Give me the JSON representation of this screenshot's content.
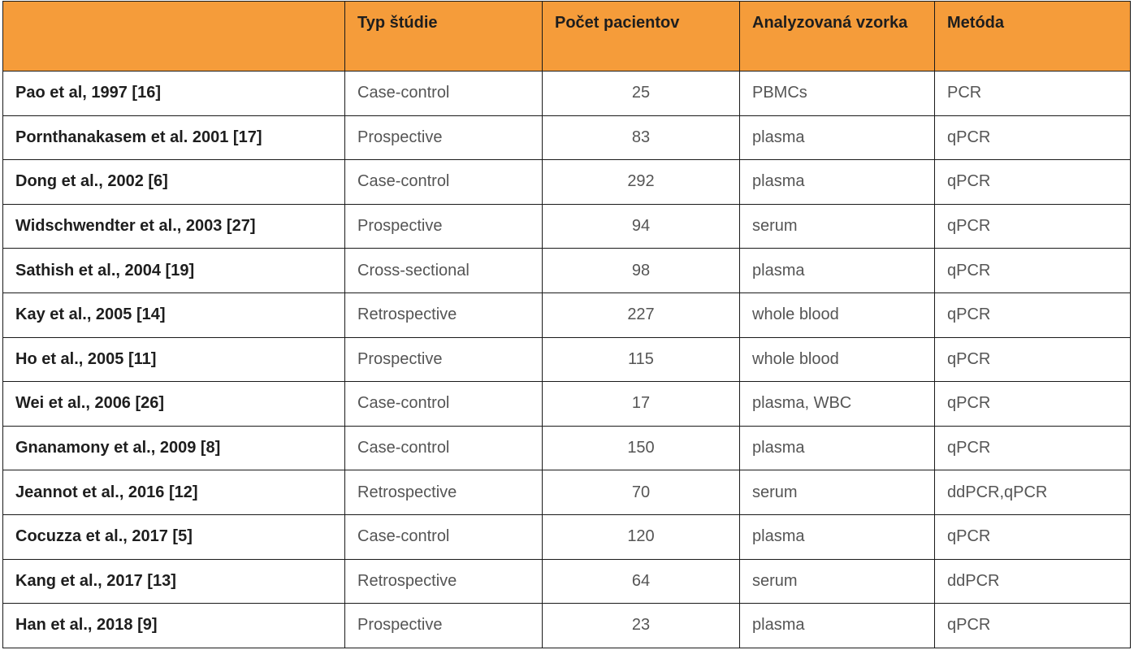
{
  "table": {
    "headers": [
      "",
      "Typ štúdie",
      "Počet pacientov",
      "Analyzovaná vzorka",
      "Metóda"
    ],
    "rows": [
      {
        "study": "Pao et al, 1997 [16]",
        "type": "Case-control",
        "count": "25",
        "sample": "PBMCs",
        "method": "PCR"
      },
      {
        "study": "Pornthanakasem et al. 2001 [17]",
        "type": "Prospective",
        "count": "83",
        "sample": "plasma",
        "method": "qPCR"
      },
      {
        "study": "Dong et al., 2002 [6]",
        "type": "Case-control",
        "count": "292",
        "sample": "plasma",
        "method": "qPCR"
      },
      {
        "study": "Widschwendter et al., 2003 [27]",
        "type": "Prospective",
        "count": "94",
        "sample": "serum",
        "method": "qPCR"
      },
      {
        "study": "Sathish et al., 2004 [19]",
        "type": "Cross-sectional",
        "count": "98",
        "sample": "plasma",
        "method": "qPCR"
      },
      {
        "study": "Kay et al., 2005 [14]",
        "type": "Retrospective",
        "count": "227",
        "sample": "whole blood",
        "method": "qPCR"
      },
      {
        "study": "Ho et al., 2005 [11]",
        "type": "Prospective",
        "count": "115",
        "sample": "whole blood",
        "method": "qPCR"
      },
      {
        "study": "Wei et al., 2006 [26]",
        "type": "Case-control",
        "count": "17",
        "sample": "plasma, WBC",
        "method": "qPCR"
      },
      {
        "study": "Gnanamony et al., 2009 [8]",
        "type": "Case-control",
        "count": "150",
        "sample": "plasma",
        "method": "qPCR"
      },
      {
        "study": "Jeannot et al., 2016 [12]",
        "type": "Retrospective",
        "count": "70",
        "sample": "serum",
        "method": "ddPCR,qPCR"
      },
      {
        "study": "Cocuzza et al., 2017 [5]",
        "type": "Case-control",
        "count": "120",
        "sample": "plasma",
        "method": "qPCR"
      },
      {
        "study": "Kang et al., 2017 [13]",
        "type": "Retrospective",
        "count": "64",
        "sample": "serum",
        "method": "ddPCR"
      },
      {
        "study": "Han et al., 2018 [9]",
        "type": "Prospective",
        "count": "23",
        "sample": "plasma",
        "method": "qPCR"
      }
    ]
  }
}
